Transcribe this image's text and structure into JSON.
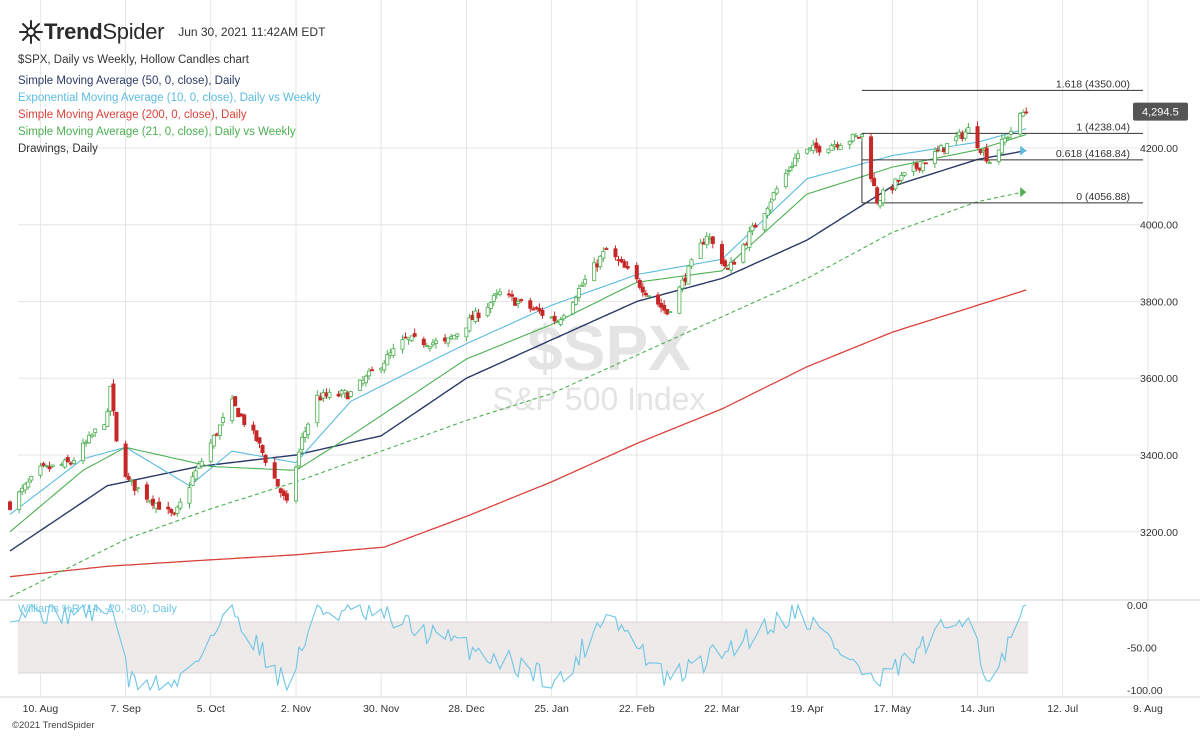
{
  "header": {
    "brand_bold": "Trend",
    "brand_light": "Spider",
    "datetime": "Jun 30, 2021 11:42AM EDT"
  },
  "chart_title": "$SPX, Daily vs Weekly, Hollow Candles chart",
  "legend": [
    {
      "label": "Simple Moving Average (50, 0, close), Daily",
      "color": "#2b3a67"
    },
    {
      "label": "Exponential Moving Average (10, 0, close), Daily vs Weekly",
      "color": "#5bbbe0"
    },
    {
      "label": "Simple Moving Average (200, 0, close), Daily",
      "color": "#d9423a"
    },
    {
      "label": "Simple Moving Average (21, 0, close), Daily vs Weekly",
      "color": "#4caf50"
    },
    {
      "label": "Drawings, Daily",
      "color": "#333333"
    }
  ],
  "watermark": {
    "symbol": "$SPX",
    "name": "S&P 500 Index"
  },
  "oscillator_label": "Williams %R (14, -20, -80), Daily",
  "copyright": "©2021 TrendSpider",
  "colors": {
    "up": "#4caf50",
    "down": "#c62828",
    "sma50": "#2b3a67",
    "ema10": "#5bbbe0",
    "sma200": "#d9423a",
    "sma21": "#4caf50",
    "wr": "#6ec6e6",
    "grid": "#e6e6e6"
  },
  "chart_data": {
    "type": "candlestick",
    "symbol": "$SPX",
    "ylim": [
      3030,
      4390
    ],
    "yticks": [
      3200,
      3400,
      3600,
      3800,
      4000,
      4200
    ],
    "ytick_labels": [
      "3200.00",
      "3400.00",
      "3600.00",
      "3800.00",
      "4000.00",
      "4200.00"
    ],
    "last_price": 4294.5,
    "last_price_label": "4,294.5",
    "x_dates": [
      "2020-08-10",
      "2020-09-07",
      "2020-10-05",
      "2020-11-02",
      "2020-11-30",
      "2020-12-28",
      "2021-01-25",
      "2021-02-22",
      "2021-03-22",
      "2021-04-19",
      "2021-05-17",
      "2021-06-14",
      "2021-07-12",
      "2021-08-09"
    ],
    "x_labels": [
      "10. Aug",
      "7. Sep",
      "5. Oct",
      "2. Nov",
      "30. Nov",
      "28. Dec",
      "25. Jan",
      "22. Feb",
      "22. Mar",
      "19. Apr",
      "17. May",
      "14. Jun",
      "12. Jul",
      "9. Aug"
    ],
    "close_anchors": [
      [
        "2020-07-31",
        3271
      ],
      [
        "2020-08-10",
        3360
      ],
      [
        "2020-08-20",
        3380
      ],
      [
        "2020-09-01",
        3500
      ],
      [
        "2020-09-02",
        3580
      ],
      [
        "2020-09-04",
        3430
      ],
      [
        "2020-09-08",
        3330
      ],
      [
        "2020-09-23",
        3237
      ],
      [
        "2020-09-29",
        3340
      ],
      [
        "2020-10-12",
        3534
      ],
      [
        "2020-10-20",
        3440
      ],
      [
        "2020-10-30",
        3270
      ],
      [
        "2020-11-04",
        3440
      ],
      [
        "2020-11-09",
        3550
      ],
      [
        "2020-11-20",
        3560
      ],
      [
        "2020-12-08",
        3700
      ],
      [
        "2020-12-21",
        3690
      ],
      [
        "2021-01-08",
        3820
      ],
      [
        "2021-01-27",
        3750
      ],
      [
        "2021-02-12",
        3935
      ],
      [
        "2021-03-04",
        3770
      ],
      [
        "2021-03-17",
        3975
      ],
      [
        "2021-03-24",
        3880
      ],
      [
        "2021-04-16",
        4185
      ],
      [
        "2021-05-07",
        4232
      ],
      [
        "2021-05-12",
        4063
      ],
      [
        "2021-05-19",
        4115
      ],
      [
        "2021-06-11",
        4247
      ],
      [
        "2021-06-18",
        4166
      ],
      [
        "2021-06-29",
        4291
      ],
      [
        "2021-06-30",
        4294.5
      ]
    ],
    "series": [
      {
        "name": "Simple Moving Average (50, 0, close), Daily",
        "points": [
          [
            "2020-07-31",
            3150
          ],
          [
            "2020-09-01",
            3320
          ],
          [
            "2020-10-01",
            3370
          ],
          [
            "2020-11-02",
            3400
          ],
          [
            "2020-11-30",
            3450
          ],
          [
            "2020-12-28",
            3600
          ],
          [
            "2021-01-25",
            3700
          ],
          [
            "2021-02-22",
            3800
          ],
          [
            "2021-03-22",
            3860
          ],
          [
            "2021-04-19",
            3960
          ],
          [
            "2021-05-17",
            4100
          ],
          [
            "2021-06-14",
            4170
          ],
          [
            "2021-06-30",
            4193
          ]
        ]
      },
      {
        "name": "Exponential Moving Average (10, 0, close), Daily vs Weekly",
        "points": [
          [
            "2020-07-31",
            3245
          ],
          [
            "2020-08-24",
            3390
          ],
          [
            "2020-09-07",
            3420
          ],
          [
            "2020-09-28",
            3320
          ],
          [
            "2020-10-12",
            3410
          ],
          [
            "2020-11-02",
            3380
          ],
          [
            "2020-11-20",
            3540
          ],
          [
            "2020-12-28",
            3690
          ],
          [
            "2021-01-25",
            3790
          ],
          [
            "2021-02-22",
            3870
          ],
          [
            "2021-03-22",
            3910
          ],
          [
            "2021-04-19",
            4120
          ],
          [
            "2021-05-17",
            4180
          ],
          [
            "2021-06-14",
            4215
          ],
          [
            "2021-06-30",
            4250
          ]
        ]
      },
      {
        "name": "Simple Moving Average (200, 0, close), Daily",
        "points": [
          [
            "2020-07-31",
            3083
          ],
          [
            "2020-09-01",
            3110
          ],
          [
            "2020-10-01",
            3125
          ],
          [
            "2020-11-02",
            3140
          ],
          [
            "2020-12-01",
            3160
          ],
          [
            "2020-12-28",
            3240
          ],
          [
            "2021-01-25",
            3330
          ],
          [
            "2021-02-22",
            3430
          ],
          [
            "2021-03-22",
            3520
          ],
          [
            "2021-04-19",
            3630
          ],
          [
            "2021-05-17",
            3720
          ],
          [
            "2021-06-14",
            3790
          ],
          [
            "2021-06-30",
            3830
          ]
        ]
      },
      {
        "name": "Simple Moving Average (21, 0, close), Daily vs Weekly",
        "points": [
          [
            "2020-07-31",
            3200
          ],
          [
            "2020-08-24",
            3360
          ],
          [
            "2020-09-07",
            3420
          ],
          [
            "2020-10-05",
            3370
          ],
          [
            "2020-11-02",
            3360
          ],
          [
            "2020-11-20",
            3450
          ],
          [
            "2020-12-28",
            3650
          ],
          [
            "2021-01-25",
            3740
          ],
          [
            "2021-02-22",
            3850
          ],
          [
            "2021-03-22",
            3880
          ],
          [
            "2021-04-19",
            4080
          ],
          [
            "2021-05-17",
            4150
          ],
          [
            "2021-06-14",
            4195
          ],
          [
            "2021-06-30",
            4235
          ]
        ]
      },
      {
        "name": "Simple Moving Average (21, 0, close), Daily vs Weekly (weekly)",
        "points": [
          [
            "2020-07-31",
            3030
          ],
          [
            "2020-09-07",
            3180
          ],
          [
            "2020-10-05",
            3260
          ],
          [
            "2020-11-02",
            3330
          ],
          [
            "2020-11-30",
            3410
          ],
          [
            "2020-12-28",
            3490
          ],
          [
            "2021-01-25",
            3560
          ],
          [
            "2021-02-22",
            3660
          ],
          [
            "2021-03-22",
            3760
          ],
          [
            "2021-04-19",
            3860
          ],
          [
            "2021-05-17",
            3980
          ],
          [
            "2021-06-14",
            4060
          ],
          [
            "2021-06-29",
            4085
          ]
        ]
      }
    ],
    "fibonacci": [
      {
        "label": "1.618 (4350.00)",
        "value": 4350.0
      },
      {
        "label": "1 (4238.04)",
        "value": 4238.04
      },
      {
        "label": "0.618 (4168.84)",
        "value": 4168.84
      },
      {
        "label": "0 (4056.88)",
        "value": 4056.88
      }
    ],
    "fib_start": "2021-05-07",
    "oscillator": {
      "name": "Williams %R (14, -20, -80), Daily",
      "ylim": [
        -100,
        0
      ],
      "yticks": [
        0,
        -50,
        -100
      ],
      "ytick_labels": [
        "0.00",
        "-50.00",
        "-100.00"
      ],
      "band": [
        -20,
        -80
      ],
      "anchors": [
        [
          "2020-07-31",
          -5
        ],
        [
          "2020-08-20",
          -10
        ],
        [
          "2020-09-03",
          -2
        ],
        [
          "2020-09-08",
          -90
        ],
        [
          "2020-09-23",
          -95
        ],
        [
          "2020-10-12",
          -5
        ],
        [
          "2020-10-30",
          -95
        ],
        [
          "2020-11-09",
          -5
        ],
        [
          "2020-12-01",
          -15
        ],
        [
          "2021-01-29",
          -90
        ],
        [
          "2021-02-12",
          -5
        ],
        [
          "2021-03-04",
          -90
        ],
        [
          "2021-04-16",
          -5
        ],
        [
          "2021-05-12",
          -95
        ],
        [
          "2021-06-11",
          -5
        ],
        [
          "2021-06-18",
          -100
        ],
        [
          "2021-06-30",
          -3
        ]
      ]
    }
  }
}
